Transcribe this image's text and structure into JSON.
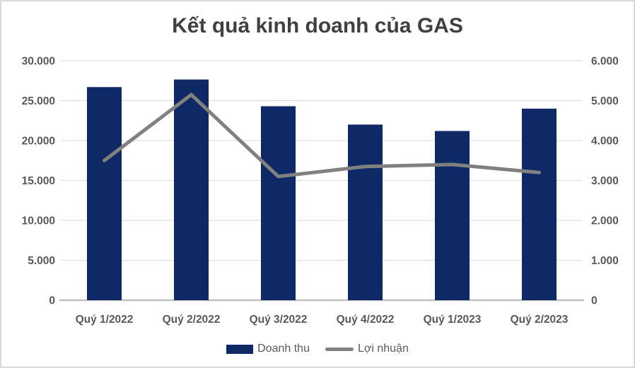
{
  "title": "Kết quả kinh doanh của GAS",
  "colors": {
    "bar": "#0e2966",
    "line": "#808080",
    "gridline": "#d9d9d9",
    "axis_line": "#bfbfbf",
    "tick_label": "#595959",
    "title_text": "#404040",
    "frame_border": "#d9d9d9"
  },
  "legend": {
    "items": [
      {
        "label": "Doanh thu",
        "type": "bar",
        "color": "#0e2966"
      },
      {
        "label": "Lợi nhuận",
        "type": "line",
        "color": "#808080"
      }
    ]
  },
  "chart_data": {
    "type": "bar",
    "subtype": "combo-bar-line-dual-axis",
    "title": "Kết quả kinh doanh của GAS",
    "categories": [
      "Quý 1/2022",
      "Quý 2/2022",
      "Quý 3/2022",
      "Quý 4/2022",
      "Quý 1/2023",
      "Quý 2/2023"
    ],
    "series": [
      {
        "name": "Doanh thu",
        "type": "bar",
        "axis": "left",
        "color": "#0e2966",
        "values": [
          26700,
          27650,
          24300,
          22000,
          21200,
          24000
        ]
      },
      {
        "name": "Lợi nhuận",
        "type": "line",
        "axis": "right",
        "color": "#808080",
        "values": [
          3500,
          5150,
          3100,
          3350,
          3400,
          3200
        ]
      }
    ],
    "left_axis": {
      "min": 0,
      "max": 30000,
      "step": 5000,
      "tick_labels": [
        "0",
        "5.000",
        "10.000",
        "15.000",
        "20.000",
        "25.000",
        "30.000"
      ]
    },
    "right_axis": {
      "min": 0,
      "max": 6000,
      "step": 1000,
      "tick_labels": [
        "0",
        "1.000",
        "2.000",
        "3.000",
        "4.000",
        "5.000",
        "6.000"
      ]
    },
    "xlabel": "",
    "ylabel": "",
    "grid": true,
    "legend_position": "bottom"
  }
}
